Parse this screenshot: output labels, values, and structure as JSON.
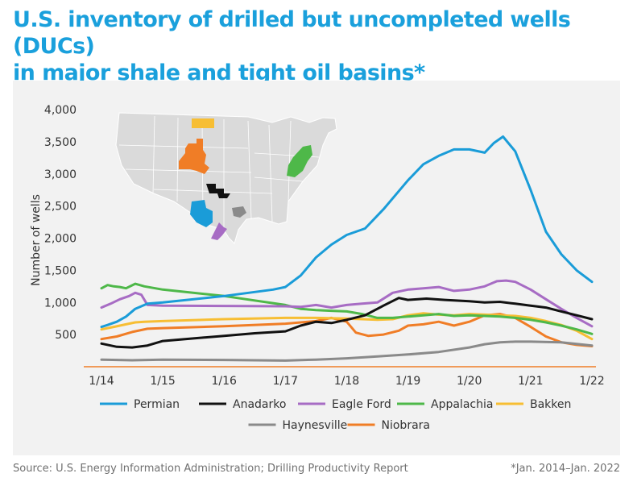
{
  "title_line1": "U.S. inventory of drilled but uncompleted wells (DUCs)",
  "title_line2": "in major shale and tight oil basins*",
  "source": "Source: U.S. Energy Information Administration; Drilling Productivity Report",
  "footnote": "*Jan. 2014–Jan. 2022",
  "chart_data": {
    "type": "line",
    "title": "U.S. inventory of drilled but uncompleted wells (DUCs) in major shale and tight oil basins*",
    "xlabel": "",
    "ylabel": "Number of wells",
    "x_ticks": [
      "1/14",
      "1/15",
      "1/16",
      "1/17",
      "1/18",
      "1/19",
      "1/20",
      "1/21",
      "1/22"
    ],
    "y_ticks": [
      500,
      1000,
      1500,
      2000,
      2500,
      3000,
      3500,
      4000
    ],
    "y_tick_labels": [
      "500",
      "1,000",
      "1,500",
      "2,000",
      "2,500",
      "3,000",
      "3,500",
      "4,000"
    ],
    "xlim": [
      2014.0,
      2022.0
    ],
    "ylim": [
      0,
      4000
    ],
    "legend_position": "bottom",
    "inset": "map of the contiguous United States with the shale basins shaded in series colors",
    "series": [
      {
        "name": "Permian",
        "color": "#1a9cd8",
        "points": [
          [
            2014.0,
            620
          ],
          [
            2014.1,
            650
          ],
          [
            2014.25,
            700
          ],
          [
            2014.4,
            780
          ],
          [
            2014.55,
            900
          ],
          [
            2014.75,
            980
          ],
          [
            2015.0,
            1000
          ],
          [
            2016.0,
            1100
          ],
          [
            2016.8,
            1200
          ],
          [
            2017.0,
            1240
          ],
          [
            2017.25,
            1420
          ],
          [
            2017.5,
            1700
          ],
          [
            2017.75,
            1900
          ],
          [
            2018.0,
            2050
          ],
          [
            2018.3,
            2150
          ],
          [
            2018.6,
            2450
          ],
          [
            2019.0,
            2900
          ],
          [
            2019.25,
            3150
          ],
          [
            2019.5,
            3280
          ],
          [
            2019.75,
            3380
          ],
          [
            2020.0,
            3380
          ],
          [
            2020.25,
            3330
          ],
          [
            2020.4,
            3480
          ],
          [
            2020.55,
            3580
          ],
          [
            2020.75,
            3350
          ],
          [
            2021.0,
            2750
          ],
          [
            2021.25,
            2100
          ],
          [
            2021.5,
            1750
          ],
          [
            2021.75,
            1500
          ],
          [
            2022.0,
            1320
          ]
        ]
      },
      {
        "name": "Anadarko",
        "color": "#111111",
        "points": [
          [
            2014.0,
            360
          ],
          [
            2014.25,
            310
          ],
          [
            2014.5,
            300
          ],
          [
            2014.75,
            330
          ],
          [
            2015.0,
            400
          ],
          [
            2015.5,
            440
          ],
          [
            2016.0,
            480
          ],
          [
            2016.5,
            520
          ],
          [
            2017.0,
            550
          ],
          [
            2017.25,
            640
          ],
          [
            2017.5,
            700
          ],
          [
            2017.75,
            680
          ],
          [
            2018.0,
            730
          ],
          [
            2018.3,
            800
          ],
          [
            2018.6,
            950
          ],
          [
            2018.85,
            1070
          ],
          [
            2019.0,
            1040
          ],
          [
            2019.3,
            1060
          ],
          [
            2019.6,
            1040
          ],
          [
            2020.0,
            1020
          ],
          [
            2020.25,
            1000
          ],
          [
            2020.5,
            1010
          ],
          [
            2020.75,
            980
          ],
          [
            2021.0,
            950
          ],
          [
            2021.25,
            920
          ],
          [
            2021.5,
            860
          ],
          [
            2021.75,
            800
          ],
          [
            2022.0,
            740
          ]
        ]
      },
      {
        "name": "Eagle Ford",
        "color": "#a76cc4",
        "points": [
          [
            2014.0,
            920
          ],
          [
            2014.15,
            980
          ],
          [
            2014.3,
            1050
          ],
          [
            2014.45,
            1100
          ],
          [
            2014.55,
            1150
          ],
          [
            2014.65,
            1120
          ],
          [
            2014.75,
            960
          ],
          [
            2015.0,
            950
          ],
          [
            2016.0,
            945
          ],
          [
            2017.0,
            940
          ],
          [
            2017.25,
            930
          ],
          [
            2017.5,
            960
          ],
          [
            2017.75,
            920
          ],
          [
            2018.0,
            960
          ],
          [
            2018.25,
            980
          ],
          [
            2018.5,
            1000
          ],
          [
            2018.75,
            1150
          ],
          [
            2019.0,
            1200
          ],
          [
            2019.25,
            1220
          ],
          [
            2019.5,
            1240
          ],
          [
            2019.75,
            1180
          ],
          [
            2020.0,
            1200
          ],
          [
            2020.25,
            1250
          ],
          [
            2020.45,
            1330
          ],
          [
            2020.6,
            1340
          ],
          [
            2020.75,
            1320
          ],
          [
            2021.0,
            1200
          ],
          [
            2021.25,
            1050
          ],
          [
            2021.5,
            900
          ],
          [
            2021.75,
            760
          ],
          [
            2022.0,
            630
          ]
        ]
      },
      {
        "name": "Appalachia",
        "color": "#4eb849",
        "points": [
          [
            2014.0,
            1220
          ],
          [
            2014.1,
            1270
          ],
          [
            2014.2,
            1250
          ],
          [
            2014.3,
            1240
          ],
          [
            2014.4,
            1220
          ],
          [
            2014.55,
            1290
          ],
          [
            2014.7,
            1250
          ],
          [
            2015.0,
            1200
          ],
          [
            2016.0,
            1100
          ],
          [
            2017.0,
            960
          ],
          [
            2017.25,
            900
          ],
          [
            2017.5,
            880
          ],
          [
            2017.75,
            870
          ],
          [
            2018.0,
            860
          ],
          [
            2018.25,
            820
          ],
          [
            2018.5,
            760
          ],
          [
            2018.75,
            760
          ],
          [
            2019.0,
            780
          ],
          [
            2019.25,
            800
          ],
          [
            2019.5,
            820
          ],
          [
            2019.75,
            790
          ],
          [
            2020.0,
            800
          ],
          [
            2020.25,
            790
          ],
          [
            2020.5,
            780
          ],
          [
            2020.75,
            760
          ],
          [
            2021.0,
            730
          ],
          [
            2021.25,
            690
          ],
          [
            2021.5,
            640
          ],
          [
            2021.75,
            580
          ],
          [
            2022.0,
            510
          ]
        ]
      },
      {
        "name": "Bakken",
        "color": "#f7be33",
        "points": [
          [
            2014.0,
            580
          ],
          [
            2014.2,
            620
          ],
          [
            2014.4,
            660
          ],
          [
            2014.55,
            690
          ],
          [
            2014.7,
            700
          ],
          [
            2015.0,
            710
          ],
          [
            2016.0,
            740
          ],
          [
            2017.0,
            760
          ],
          [
            2017.5,
            760
          ],
          [
            2018.0,
            750
          ],
          [
            2018.25,
            740
          ],
          [
            2018.5,
            730
          ],
          [
            2018.75,
            740
          ],
          [
            2019.0,
            800
          ],
          [
            2019.25,
            830
          ],
          [
            2019.5,
            810
          ],
          [
            2019.75,
            800
          ],
          [
            2020.0,
            820
          ],
          [
            2020.25,
            810
          ],
          [
            2020.5,
            800
          ],
          [
            2020.75,
            790
          ],
          [
            2021.0,
            760
          ],
          [
            2021.25,
            710
          ],
          [
            2021.5,
            650
          ],
          [
            2021.75,
            560
          ],
          [
            2022.0,
            430
          ]
        ]
      },
      {
        "name": "Haynesville",
        "color": "#8a8a8a",
        "points": [
          [
            2014.0,
            110
          ],
          [
            2014.5,
            100
          ],
          [
            2015.0,
            110
          ],
          [
            2016.0,
            105
          ],
          [
            2017.0,
            95
          ],
          [
            2017.5,
            110
          ],
          [
            2018.0,
            130
          ],
          [
            2018.5,
            160
          ],
          [
            2019.0,
            190
          ],
          [
            2019.5,
            230
          ],
          [
            2020.0,
            300
          ],
          [
            2020.25,
            350
          ],
          [
            2020.5,
            380
          ],
          [
            2020.75,
            390
          ],
          [
            2021.0,
            390
          ],
          [
            2021.5,
            380
          ],
          [
            2022.0,
            330
          ]
        ]
      },
      {
        "name": "Niobrara",
        "color": "#f07d26",
        "points": [
          [
            2014.0,
            430
          ],
          [
            2014.25,
            470
          ],
          [
            2014.5,
            540
          ],
          [
            2014.75,
            590
          ],
          [
            2015.0,
            600
          ],
          [
            2016.0,
            630
          ],
          [
            2017.0,
            670
          ],
          [
            2017.25,
            690
          ],
          [
            2017.5,
            710
          ],
          [
            2017.75,
            760
          ],
          [
            2018.0,
            700
          ],
          [
            2018.15,
            530
          ],
          [
            2018.35,
            480
          ],
          [
            2018.6,
            500
          ],
          [
            2018.85,
            560
          ],
          [
            2019.0,
            640
          ],
          [
            2019.25,
            660
          ],
          [
            2019.5,
            700
          ],
          [
            2019.75,
            640
          ],
          [
            2020.0,
            700
          ],
          [
            2020.25,
            800
          ],
          [
            2020.5,
            820
          ],
          [
            2020.75,
            760
          ],
          [
            2021.0,
            620
          ],
          [
            2021.25,
            470
          ],
          [
            2021.5,
            380
          ],
          [
            2021.75,
            340
          ],
          [
            2022.0,
            320
          ]
        ]
      }
    ]
  },
  "legend_layout": [
    {
      "series": 0,
      "col": 0,
      "row": 0
    },
    {
      "series": 1,
      "col": 1,
      "row": 0
    },
    {
      "series": 2,
      "col": 2,
      "row": 0
    },
    {
      "series": 3,
      "col": 3,
      "row": 0
    },
    {
      "series": 4,
      "col": 4,
      "row": 0
    },
    {
      "series": 5,
      "col": 1.5,
      "row": 1
    },
    {
      "series": 6,
      "col": 2.5,
      "row": 1
    }
  ]
}
